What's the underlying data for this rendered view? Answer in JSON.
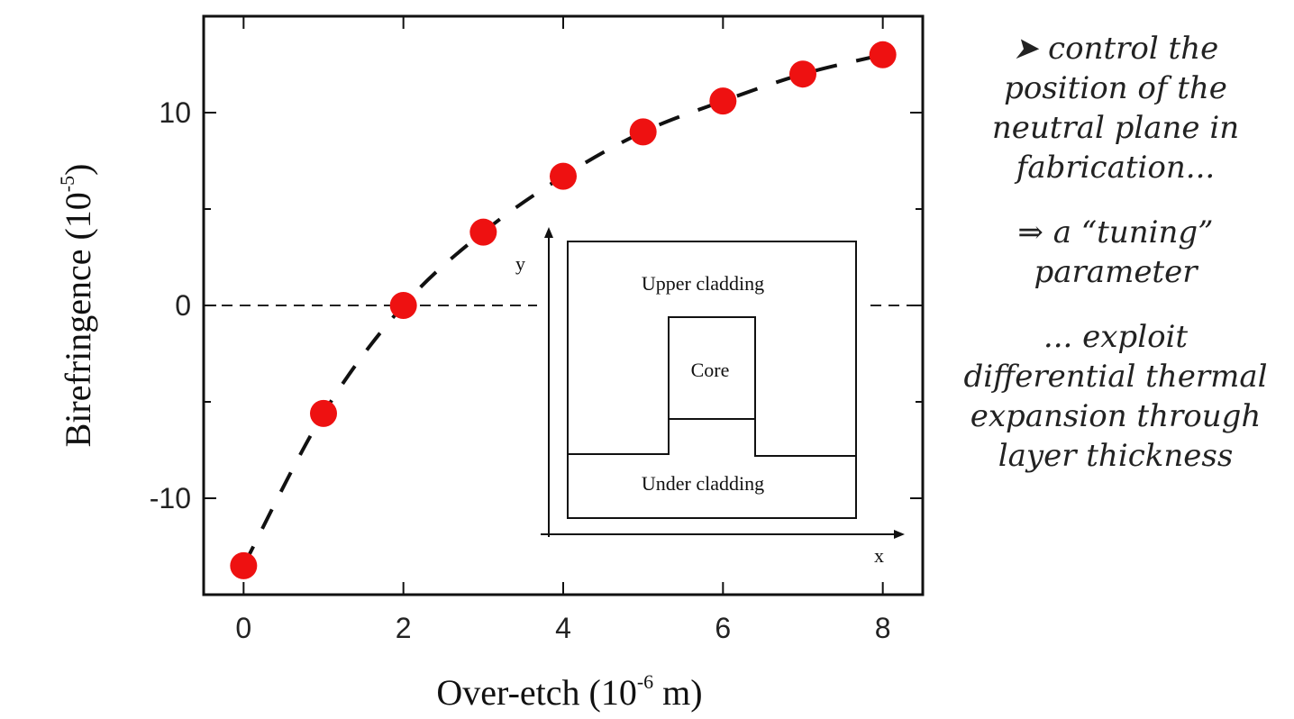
{
  "chart_data": {
    "type": "scatter",
    "title": "",
    "xlabel": {
      "main": "Over-etch (10",
      "exp": "-6",
      "unit": " m)"
    },
    "ylabel": {
      "main": "Birefringence (10",
      "exp": "-5",
      "unit": ")"
    },
    "xlim": [
      -0.5,
      8.5
    ],
    "ylim": [
      -15,
      15
    ],
    "x_ticks": [
      0,
      2,
      4,
      6,
      8
    ],
    "y_ticks": [
      -10,
      0,
      10
    ],
    "grid": false,
    "reference_line": {
      "y": 0,
      "style": "dashed"
    },
    "series": [
      {
        "marker_color": "#ee1111",
        "trend_line": "dashed",
        "x": [
          0,
          1,
          2,
          3,
          4,
          5,
          6,
          7,
          8
        ],
        "y": [
          -13.5,
          -5.6,
          0,
          3.8,
          6.7,
          9.0,
          10.6,
          12.0,
          13.0
        ]
      }
    ],
    "inset": {
      "x_axis_label": "x",
      "y_axis_label": "y",
      "upper_label": "Upper cladding",
      "core_label": "Core",
      "under_label": "Under cladding"
    }
  },
  "notes": {
    "line1": "➤ control the",
    "line2": "position of the",
    "line3": "neutral plane in",
    "line4": "fabrication...",
    "line5": "⇒ a “tuning”",
    "line6": "parameter",
    "line7": "... exploit",
    "line8": "differential thermal",
    "line9": "expansion through",
    "line10": "layer thickness"
  }
}
